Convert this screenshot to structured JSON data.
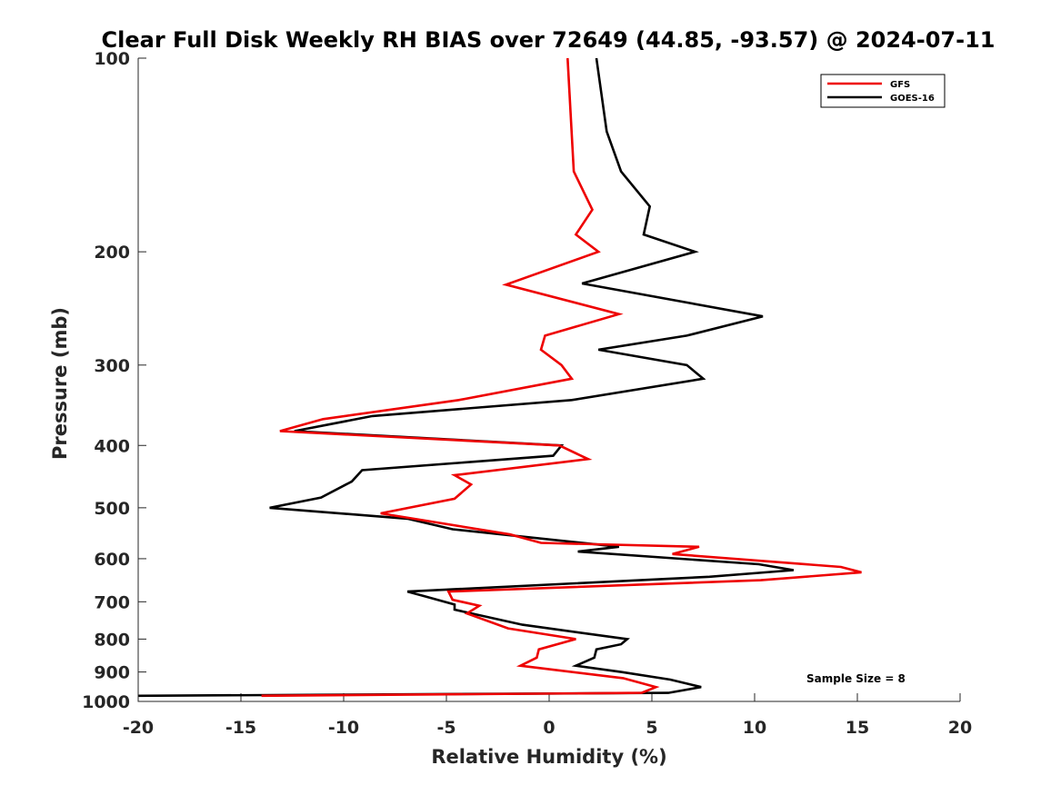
{
  "chart_data": {
    "type": "line",
    "title": "Clear Full Disk Weekly RH BIAS over 72649 (44.85, -93.57) @ 2024-07-11",
    "xlabel": "Relative Humidity (%)",
    "ylabel": "Pressure (mb)",
    "xlim": [
      -20,
      20
    ],
    "ylim": [
      1000,
      100
    ],
    "y_scale": "log",
    "x_ticks": [
      "-20",
      "-15",
      "-10",
      "-5",
      "0",
      "5",
      "10",
      "15",
      "20"
    ],
    "y_ticks": [
      "100",
      "200",
      "300",
      "400",
      "500",
      "600",
      "700",
      "800",
      "900",
      "1000"
    ],
    "legend_position": "top-right",
    "annotation": "Sample Size = 8",
    "series": [
      {
        "name": "GFS",
        "color": "#ee0000",
        "points": [
          [
            0.9,
            100
          ],
          [
            1.2,
            150
          ],
          [
            2.1,
            172
          ],
          [
            1.3,
            188
          ],
          [
            2.4,
            200
          ],
          [
            -2.1,
            225
          ],
          [
            3.4,
            250
          ],
          [
            -0.2,
            270
          ],
          [
            -0.4,
            284
          ],
          [
            0.6,
            300
          ],
          [
            1.1,
            315
          ],
          [
            -4.4,
            340
          ],
          [
            -11.0,
            364
          ],
          [
            -13.1,
            380
          ],
          [
            0.5,
            400
          ],
          [
            1.9,
            420
          ],
          [
            -4.6,
            445
          ],
          [
            -3.8,
            460
          ],
          [
            -4.6,
            484
          ],
          [
            -8.2,
            510
          ],
          [
            -1.9,
            550
          ],
          [
            -0.4,
            567
          ],
          [
            7.3,
            575
          ],
          [
            6.0,
            590
          ],
          [
            14.2,
            618
          ],
          [
            15.2,
            630
          ],
          [
            10.3,
            648
          ],
          [
            -4.9,
            675
          ],
          [
            -4.7,
            695
          ],
          [
            -3.4,
            710
          ],
          [
            -4.0,
            730
          ],
          [
            -2.0,
            770
          ],
          [
            1.3,
            800
          ],
          [
            -0.5,
            830
          ],
          [
            -0.6,
            855
          ],
          [
            -1.4,
            880
          ],
          [
            3.6,
            920
          ],
          [
            5.2,
            950
          ],
          [
            4.5,
            970
          ],
          [
            -14.0,
            980
          ]
        ]
      },
      {
        "name": "GOES-16",
        "color": "#000000",
        "points": [
          [
            2.3,
            100
          ],
          [
            2.8,
            130
          ],
          [
            3.5,
            150
          ],
          [
            4.9,
            170
          ],
          [
            4.6,
            188
          ],
          [
            7.1,
            200
          ],
          [
            1.6,
            224
          ],
          [
            10.4,
            252
          ],
          [
            6.7,
            270
          ],
          [
            2.4,
            284
          ],
          [
            6.7,
            300
          ],
          [
            7.5,
            315
          ],
          [
            1.1,
            340
          ],
          [
            -8.6,
            360
          ],
          [
            -12.4,
            380
          ],
          [
            0.6,
            400
          ],
          [
            0.2,
            415
          ],
          [
            -9.1,
            437
          ],
          [
            -9.6,
            455
          ],
          [
            -11.1,
            482
          ],
          [
            -13.6,
            500
          ],
          [
            -6.9,
            520
          ],
          [
            -4.7,
            540
          ],
          [
            3.4,
            575
          ],
          [
            1.4,
            585
          ],
          [
            10.2,
            612
          ],
          [
            11.9,
            625
          ],
          [
            7.8,
            640
          ],
          [
            -6.9,
            675
          ],
          [
            -6.0,
            687
          ],
          [
            -4.6,
            707
          ],
          [
            -4.6,
            720
          ],
          [
            -1.3,
            760
          ],
          [
            3.8,
            800
          ],
          [
            3.5,
            815
          ],
          [
            2.3,
            830
          ],
          [
            2.2,
            855
          ],
          [
            1.3,
            880
          ],
          [
            3.5,
            900
          ],
          [
            5.9,
            925
          ],
          [
            7.4,
            950
          ],
          [
            5.8,
            970
          ],
          [
            -20.0,
            980
          ]
        ]
      }
    ]
  }
}
